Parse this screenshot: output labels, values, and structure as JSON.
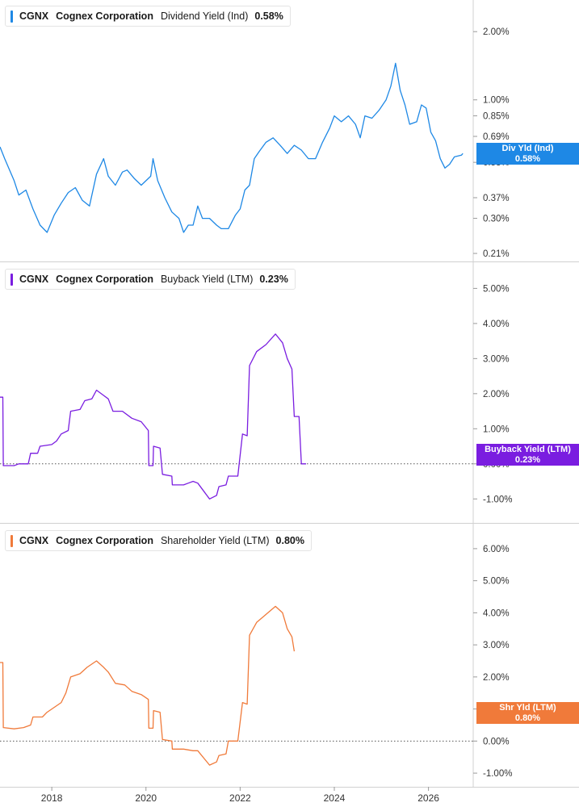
{
  "chart_data": [
    {
      "type": "line",
      "ticker": "CGNX",
      "company": "Cognex Corporation",
      "metric": "Dividend Yield (Ind)",
      "current": "0.58%",
      "badge_label": "Div Yld (Ind)",
      "color": "#1e88e5",
      "y_scale": "log",
      "ylim": [
        0.2,
        2.5
      ],
      "ticks": [
        {
          "value": 2.0,
          "label": "2.00%"
        },
        {
          "value": 1.0,
          "label": "1.00%"
        },
        {
          "value": 0.85,
          "label": "0.85%"
        },
        {
          "value": 0.69,
          "label": "0.69%"
        },
        {
          "value": 0.53,
          "label": "0.53%"
        },
        {
          "value": 0.37,
          "label": "0.37%"
        },
        {
          "value": 0.3,
          "label": "0.30%"
        },
        {
          "value": 0.21,
          "label": "0.21%"
        }
      ],
      "zero_line": false,
      "series": [
        [
          2016.9,
          0.62
        ],
        [
          2017.0,
          0.55
        ],
        [
          2017.2,
          0.44
        ],
        [
          2017.3,
          0.38
        ],
        [
          2017.45,
          0.4
        ],
        [
          2017.6,
          0.33
        ],
        [
          2017.75,
          0.28
        ],
        [
          2017.9,
          0.26
        ],
        [
          2018.05,
          0.31
        ],
        [
          2018.2,
          0.35
        ],
        [
          2018.35,
          0.39
        ],
        [
          2018.5,
          0.41
        ],
        [
          2018.65,
          0.36
        ],
        [
          2018.8,
          0.34
        ],
        [
          2018.95,
          0.47
        ],
        [
          2019.1,
          0.55
        ],
        [
          2019.2,
          0.46
        ],
        [
          2019.35,
          0.42
        ],
        [
          2019.5,
          0.48
        ],
        [
          2019.6,
          0.49
        ],
        [
          2019.75,
          0.45
        ],
        [
          2019.9,
          0.42
        ],
        [
          2020.1,
          0.46
        ],
        [
          2020.15,
          0.55
        ],
        [
          2020.25,
          0.44
        ],
        [
          2020.4,
          0.37
        ],
        [
          2020.55,
          0.32
        ],
        [
          2020.7,
          0.3
        ],
        [
          2020.8,
          0.26
        ],
        [
          2020.9,
          0.28
        ],
        [
          2021.0,
          0.28
        ],
        [
          2021.1,
          0.34
        ],
        [
          2021.2,
          0.3
        ],
        [
          2021.35,
          0.3
        ],
        [
          2021.5,
          0.28
        ],
        [
          2021.6,
          0.27
        ],
        [
          2021.75,
          0.27
        ],
        [
          2021.9,
          0.31
        ],
        [
          2022.0,
          0.33
        ],
        [
          2022.1,
          0.4
        ],
        [
          2022.2,
          0.42
        ],
        [
          2022.3,
          0.55
        ],
        [
          2022.4,
          0.59
        ],
        [
          2022.55,
          0.65
        ],
        [
          2022.7,
          0.68
        ],
        [
          2022.85,
          0.63
        ],
        [
          2023.0,
          0.58
        ],
        [
          2023.15,
          0.63
        ],
        [
          2023.3,
          0.6
        ],
        [
          2023.45,
          0.55
        ],
        [
          2023.6,
          0.55
        ],
        [
          2023.75,
          0.65
        ],
        [
          2023.9,
          0.75
        ],
        [
          2024.0,
          0.85
        ],
        [
          2024.15,
          0.8
        ],
        [
          2024.3,
          0.85
        ],
        [
          2024.45,
          0.78
        ],
        [
          2024.55,
          0.68
        ],
        [
          2024.65,
          0.85
        ],
        [
          2024.8,
          0.83
        ],
        [
          2024.95,
          0.9
        ],
        [
          2025.1,
          1.0
        ],
        [
          2025.2,
          1.15
        ],
        [
          2025.3,
          1.45
        ],
        [
          2025.4,
          1.1
        ],
        [
          2025.5,
          0.95
        ],
        [
          2025.6,
          0.78
        ],
        [
          2025.75,
          0.8
        ],
        [
          2025.85,
          0.95
        ],
        [
          2025.95,
          0.92
        ],
        [
          2026.05,
          0.72
        ],
        [
          2026.15,
          0.66
        ],
        [
          2026.25,
          0.55
        ],
        [
          2026.35,
          0.5
        ],
        [
          2026.45,
          0.52
        ],
        [
          2026.55,
          0.56
        ],
        [
          2026.7,
          0.57
        ],
        [
          2026.73,
          0.58
        ]
      ]
    },
    {
      "type": "line",
      "ticker": "CGNX",
      "company": "Cognex Corporation",
      "metric": "Buyback Yield (LTM)",
      "current": "0.23%",
      "badge_label": "Buyback Yield (LTM)",
      "color": "#7a1de0",
      "y_scale": "linear",
      "ylim": [
        -1.5,
        5.4
      ],
      "ticks": [
        {
          "value": 5,
          "label": "5.00%"
        },
        {
          "value": 4,
          "label": "4.00%"
        },
        {
          "value": 3,
          "label": "3.00%"
        },
        {
          "value": 2,
          "label": "2.00%"
        },
        {
          "value": 1,
          "label": "1.00%"
        },
        {
          "value": 0,
          "label": "0.00%"
        },
        {
          "value": -1,
          "label": "-1.00%"
        }
      ],
      "zero_line": true,
      "series": [
        [
          2016.9,
          1.9
        ],
        [
          2016.96,
          1.9
        ],
        [
          2016.97,
          -0.05
        ],
        [
          2017.2,
          -0.05
        ],
        [
          2017.3,
          0.0
        ],
        [
          2017.5,
          0.0
        ],
        [
          2017.55,
          0.3
        ],
        [
          2017.7,
          0.3
        ],
        [
          2017.75,
          0.5
        ],
        [
          2018.0,
          0.55
        ],
        [
          2018.1,
          0.65
        ],
        [
          2018.2,
          0.85
        ],
        [
          2018.35,
          0.95
        ],
        [
          2018.4,
          1.5
        ],
        [
          2018.6,
          1.55
        ],
        [
          2018.7,
          1.8
        ],
        [
          2018.85,
          1.85
        ],
        [
          2018.95,
          2.1
        ],
        [
          2019.1,
          1.95
        ],
        [
          2019.2,
          1.85
        ],
        [
          2019.3,
          1.5
        ],
        [
          2019.5,
          1.5
        ],
        [
          2019.7,
          1.3
        ],
        [
          2019.9,
          1.2
        ],
        [
          2020.05,
          0.95
        ],
        [
          2020.06,
          -0.05
        ],
        [
          2020.15,
          -0.05
        ],
        [
          2020.16,
          0.5
        ],
        [
          2020.3,
          0.45
        ],
        [
          2020.35,
          -0.3
        ],
        [
          2020.55,
          -0.35
        ],
        [
          2020.56,
          -0.6
        ],
        [
          2020.8,
          -0.6
        ],
        [
          2020.9,
          -0.55
        ],
        [
          2021.0,
          -0.5
        ],
        [
          2021.1,
          -0.55
        ],
        [
          2021.35,
          -1.0
        ],
        [
          2021.5,
          -0.9
        ],
        [
          2021.55,
          -0.65
        ],
        [
          2021.7,
          -0.6
        ],
        [
          2021.75,
          -0.35
        ],
        [
          2021.95,
          -0.35
        ],
        [
          2022.05,
          0.85
        ],
        [
          2022.15,
          0.8
        ],
        [
          2022.2,
          2.8
        ],
        [
          2022.35,
          3.2
        ],
        [
          2022.55,
          3.4
        ],
        [
          2022.75,
          3.7
        ],
        [
          2022.9,
          3.45
        ],
        [
          2023.0,
          3.0
        ],
        [
          2023.1,
          2.7
        ],
        [
          2023.15,
          1.35
        ],
        [
          2023.25,
          1.35
        ],
        [
          2023.3,
          0.0
        ],
        [
          2023.4,
          0.0
        ]
      ]
    },
    {
      "type": "line",
      "ticker": "CGNX",
      "company": "Cognex Corporation",
      "metric": "Shareholder Yield (LTM)",
      "current": "0.80%",
      "badge_label": "Shr Yld (LTM)",
      "color": "#f07a3a",
      "y_scale": "linear",
      "ylim": [
        -1.3,
        6.4
      ],
      "ticks": [
        {
          "value": 6,
          "label": "6.00%"
        },
        {
          "value": 5,
          "label": "5.00%"
        },
        {
          "value": 4,
          "label": "4.00%"
        },
        {
          "value": 3,
          "label": "3.00%"
        },
        {
          "value": 2,
          "label": "2.00%"
        },
        {
          "value": 1,
          "label": "1.00%"
        },
        {
          "value": 0,
          "label": "0.00%"
        },
        {
          "value": -1,
          "label": "-1.00%"
        }
      ],
      "zero_line": true,
      "series": [
        [
          2016.9,
          2.45
        ],
        [
          2016.96,
          2.45
        ],
        [
          2016.97,
          0.42
        ],
        [
          2017.2,
          0.38
        ],
        [
          2017.4,
          0.42
        ],
        [
          2017.55,
          0.5
        ],
        [
          2017.6,
          0.75
        ],
        [
          2017.8,
          0.75
        ],
        [
          2017.9,
          0.9
        ],
        [
          2018.1,
          1.1
        ],
        [
          2018.2,
          1.2
        ],
        [
          2018.3,
          1.5
        ],
        [
          2018.4,
          2.0
        ],
        [
          2018.6,
          2.1
        ],
        [
          2018.75,
          2.3
        ],
        [
          2018.95,
          2.5
        ],
        [
          2019.1,
          2.3
        ],
        [
          2019.2,
          2.15
        ],
        [
          2019.35,
          1.8
        ],
        [
          2019.55,
          1.75
        ],
        [
          2019.7,
          1.55
        ],
        [
          2019.9,
          1.45
        ],
        [
          2020.05,
          1.3
        ],
        [
          2020.06,
          0.4
        ],
        [
          2020.15,
          0.4
        ],
        [
          2020.16,
          0.95
        ],
        [
          2020.3,
          0.9
        ],
        [
          2020.35,
          0.05
        ],
        [
          2020.55,
          0.0
        ],
        [
          2020.56,
          -0.25
        ],
        [
          2020.8,
          -0.25
        ],
        [
          2021.0,
          -0.3
        ],
        [
          2021.1,
          -0.3
        ],
        [
          2021.35,
          -0.75
        ],
        [
          2021.5,
          -0.65
        ],
        [
          2021.55,
          -0.45
        ],
        [
          2021.7,
          -0.4
        ],
        [
          2021.75,
          0.0
        ],
        [
          2021.95,
          0.0
        ],
        [
          2022.05,
          1.2
        ],
        [
          2022.15,
          1.15
        ],
        [
          2022.2,
          3.3
        ],
        [
          2022.35,
          3.7
        ],
        [
          2022.55,
          3.95
        ],
        [
          2022.75,
          4.2
        ],
        [
          2022.9,
          4.0
        ],
        [
          2023.0,
          3.5
        ],
        [
          2023.1,
          3.25
        ],
        [
          2023.15,
          2.8
        ]
      ]
    }
  ],
  "x_axis": {
    "range": [
      2016.9,
      2026.95
    ],
    "ticks": [
      {
        "value": 2018,
        "label": "2018"
      },
      {
        "value": 2020,
        "label": "2020"
      },
      {
        "value": 2022,
        "label": "2022"
      },
      {
        "value": 2024,
        "label": "2024"
      },
      {
        "value": 2026,
        "label": "2026"
      }
    ]
  }
}
